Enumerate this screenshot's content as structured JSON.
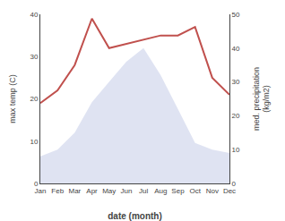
{
  "chart_data": {
    "type": "line",
    "categories": [
      "Jan",
      "Feb",
      "Mar",
      "Apr",
      "May",
      "Jun",
      "Jul",
      "Aug",
      "Sep",
      "Oct",
      "Nov",
      "Dec"
    ],
    "series": [
      {
        "type": "area",
        "axis": "y2",
        "color": "#c5cce8",
        "values": [
          8,
          10,
          15,
          24,
          30,
          36,
          40,
          32,
          22,
          12,
          10,
          9
        ]
      },
      {
        "type": "line",
        "color": "#c0504d",
        "values": [
          19,
          22,
          28,
          39,
          32,
          33,
          34,
          35,
          35,
          37,
          25,
          21
        ]
      }
    ],
    "xlabel": "date (month)",
    "ylabel": "max temp (C)",
    "y2label": "med. precipitation\n(kg/m2)",
    "ylim": [
      0,
      40
    ],
    "yticks": [
      0,
      10,
      20,
      30,
      40
    ],
    "y2lim": [
      0,
      50
    ],
    "y2ticks": [
      0,
      10,
      20,
      30,
      40,
      50
    ],
    "grid": false
  }
}
